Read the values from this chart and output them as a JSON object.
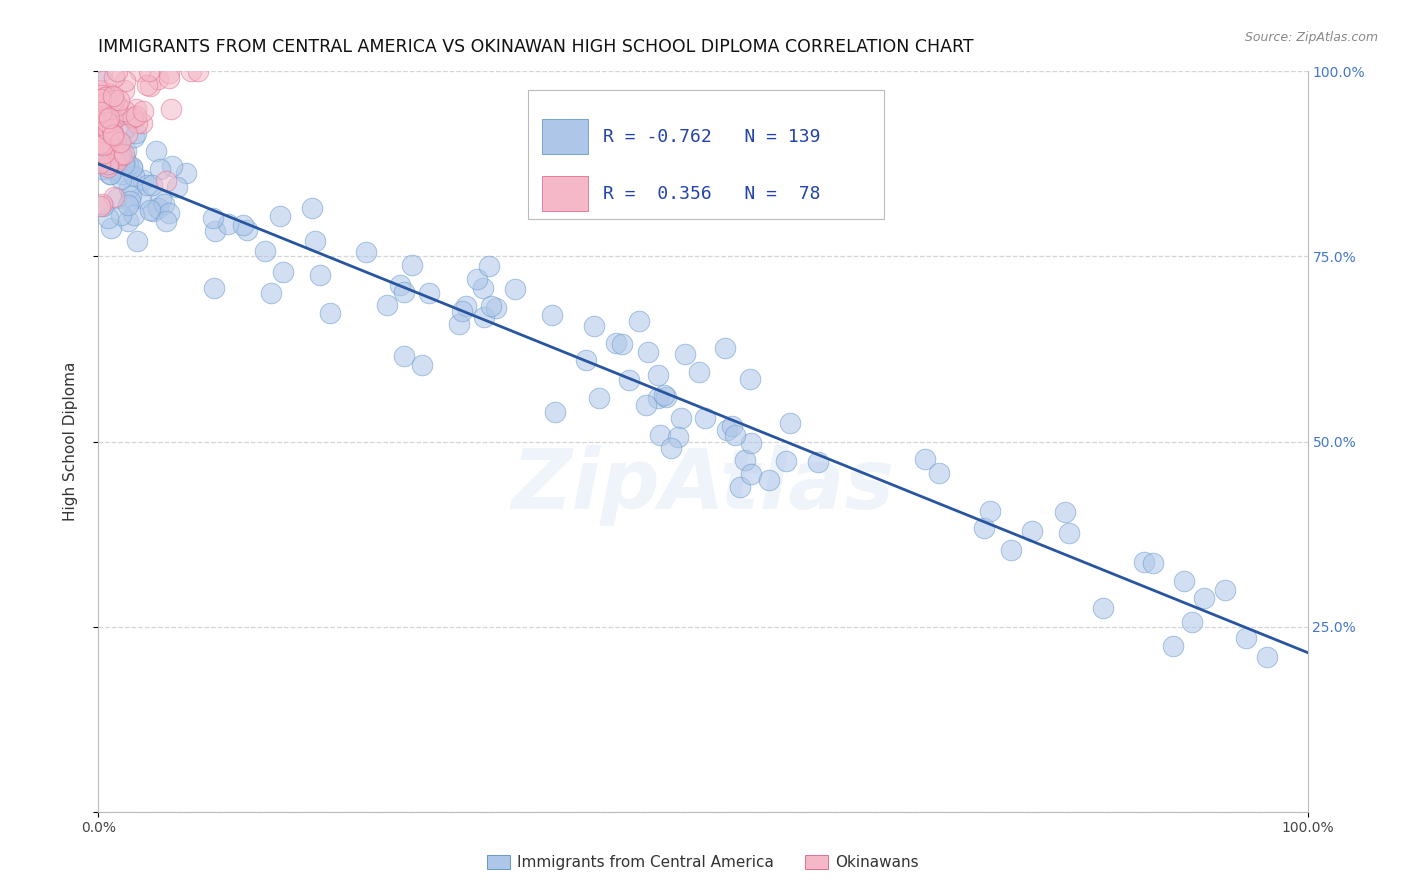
{
  "title": "IMMIGRANTS FROM CENTRAL AMERICA VS OKINAWAN HIGH SCHOOL DIPLOMA CORRELATION CHART",
  "source": "Source: ZipAtlas.com",
  "ylabel": "High School Diploma",
  "xlim": [
    0.0,
    1.0
  ],
  "ylim": [
    0.0,
    1.0
  ],
  "blue_R": -0.762,
  "blue_N": 139,
  "pink_R": 0.356,
  "pink_N": 78,
  "blue_color": "#aec6e8",
  "pink_color": "#f4b8c8",
  "trend_color": "#2855a0",
  "blue_edge": "#6699cc",
  "pink_edge": "#e07090",
  "trend_y_start": 0.875,
  "trend_y_end": 0.215,
  "watermark": "ZipAtlas",
  "title_fontsize": 12.5,
  "label_fontsize": 11,
  "tick_fontsize": 10,
  "legend_fontsize": 13,
  "ytick_color": "#4477cc"
}
